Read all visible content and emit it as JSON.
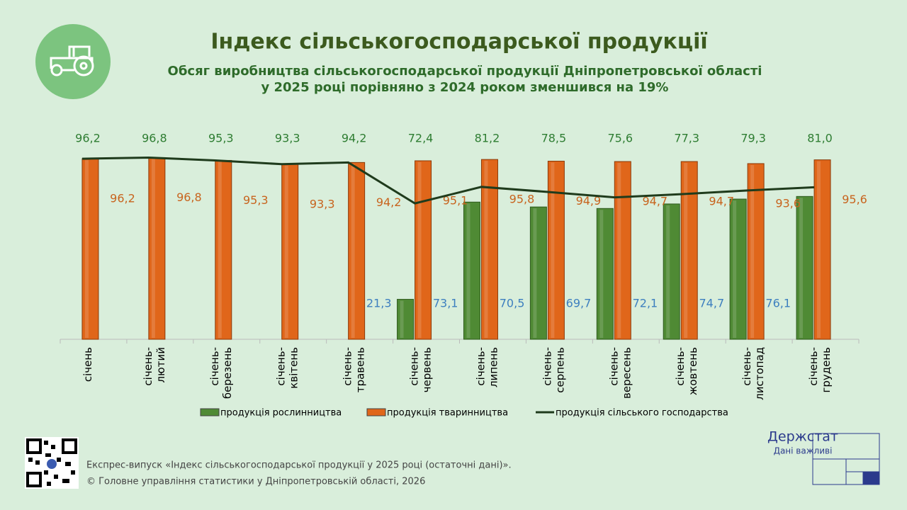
{
  "chart_data": {
    "type": "bar-line",
    "title": "Індекс сільськогосподарської продукції",
    "subtitle": [
      "Обсяг виробництва сільськогосподарської продукції Дніпропетровської області",
      "у 2025 році порівняно з 2024 роком зменшився на 19%"
    ],
    "categories": [
      "січень",
      "січень-лютий",
      "січень-березень",
      "січень-квітень",
      "січень-травень",
      "січень-червень",
      "січень-липень",
      "січень-серпень",
      "січень-вересень",
      "січень-жовтень",
      "січень-листопад",
      "січень-грудень"
    ],
    "ylim": [
      0,
      100
    ],
    "legend": "bottom",
    "series": [
      {
        "name": "продукція рослинництва",
        "color": "#4f8a34",
        "kind": "bar",
        "values": [
          null,
          null,
          null,
          null,
          null,
          21.3,
          73.1,
          70.5,
          69.7,
          72.1,
          74.7,
          76.1
        ],
        "value_labels": [
          null,
          null,
          null,
          null,
          null,
          "21,3",
          "73,1",
          "70,5",
          "69,7",
          "72,1",
          "74,7",
          "76,1"
        ]
      },
      {
        "name": "продукція тваринництва",
        "color": "#e0661a",
        "kind": "bar",
        "values": [
          96.2,
          96.8,
          95.3,
          93.3,
          94.2,
          95.1,
          95.8,
          94.9,
          94.7,
          94.7,
          93.6,
          95.6
        ],
        "value_labels": [
          "96,2",
          "96,8",
          "95,3",
          "93,3",
          "94,2",
          "95,1",
          "95,8",
          "94,9",
          "94,7",
          "94,7",
          "93,6",
          "95,6"
        ]
      },
      {
        "name": "продукція сільського господарства",
        "color": "#1f3b1c",
        "kind": "line",
        "values": [
          96.2,
          96.8,
          95.3,
          93.3,
          94.2,
          72.4,
          81.2,
          78.5,
          75.6,
          77.3,
          79.3,
          81.0
        ],
        "value_labels": [
          "96,2",
          "96,8",
          "95,3",
          "93,3",
          "94,2",
          "72,4",
          "81,2",
          "78,5",
          "75,6",
          "77,3",
          "79,3",
          "81,0"
        ]
      }
    ]
  },
  "footer": {
    "release": "Експрес-випуск «Індекс сільськогосподарської продукції у 2025 році (остаточні дані)».",
    "copyright": "© Головне управління статистики у Дніпропетровській області, 2026"
  },
  "logo": {
    "name": "Держстат",
    "tagline": "Дані важливі"
  }
}
